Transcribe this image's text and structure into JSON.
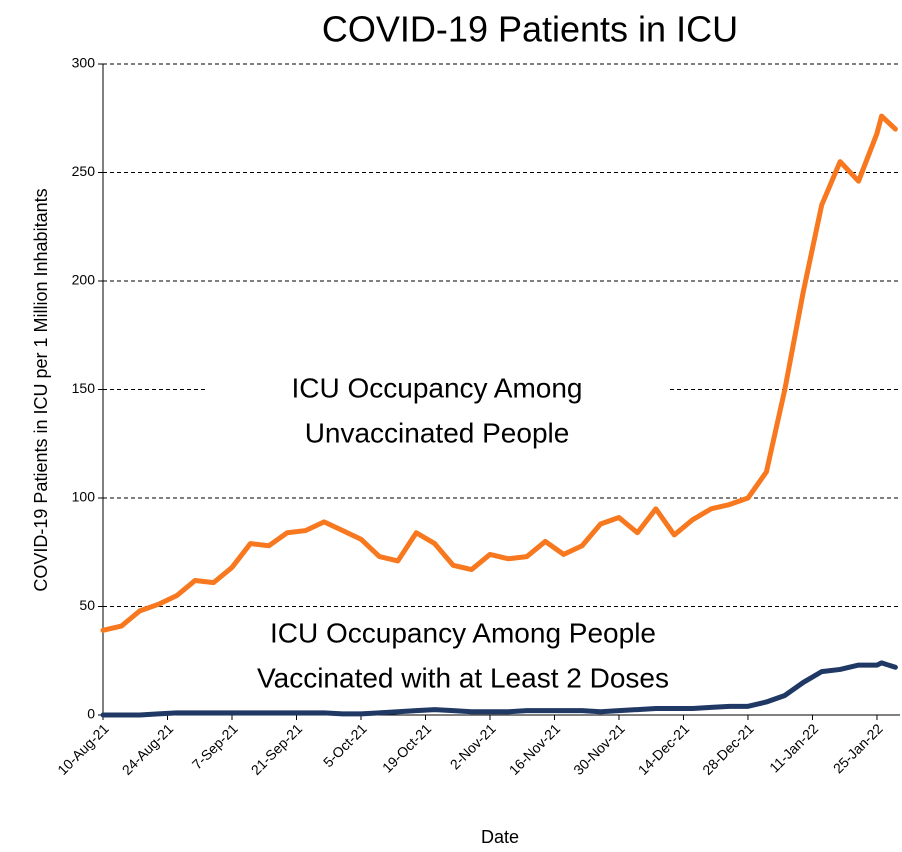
{
  "chart_data": {
    "type": "line",
    "title": "COVID-19 Patients in ICU",
    "x_label": "Date",
    "y_label": "COVID-19 Patients in ICU  per 1 Million Inhabitants",
    "x": [
      "10-Aug-21",
      "14-Aug-21",
      "18-Aug-21",
      "22-Aug-21",
      "26-Aug-21",
      "30-Aug-21",
      "3-Sep-21",
      "7-Sep-21",
      "11-Sep-21",
      "15-Sep-21",
      "19-Sep-21",
      "23-Sep-21",
      "27-Sep-21",
      "1-Oct-21",
      "5-Oct-21",
      "9-Oct-21",
      "13-Oct-21",
      "17-Oct-21",
      "21-Oct-21",
      "25-Oct-21",
      "29-Oct-21",
      "2-Nov-21",
      "6-Nov-21",
      "10-Nov-21",
      "14-Nov-21",
      "18-Nov-21",
      "22-Nov-21",
      "26-Nov-21",
      "30-Nov-21",
      "4-Dec-21",
      "8-Dec-21",
      "12-Dec-21",
      "16-Dec-21",
      "20-Dec-21",
      "24-Dec-21",
      "28-Dec-21",
      "1-Jan-22",
      "5-Jan-22",
      "9-Jan-22",
      "13-Jan-22",
      "17-Jan-22",
      "21-Jan-22",
      "25-Jan-22",
      "26-Jan-22",
      "29-Jan-22"
    ],
    "series": [
      {
        "name": "ICU Occupancy Among Unvaccinated People",
        "color": "#f7781e",
        "values": [
          39,
          41,
          48,
          51,
          55,
          62,
          61,
          68,
          79,
          78,
          84,
          85,
          89,
          85,
          81,
          73,
          71,
          84,
          79,
          69,
          67,
          74,
          72,
          73,
          80,
          74,
          78,
          88,
          91,
          84,
          95,
          83,
          90,
          95,
          97,
          100,
          112,
          150,
          195,
          235,
          255,
          246,
          268,
          276,
          270
        ]
      },
      {
        "name": "ICU Occupancy Among People Vaccinated with at Least 2 Doses",
        "color": "#1f3864",
        "values": [
          0,
          0,
          0,
          0.5,
          1,
          1,
          1,
          1,
          1,
          1,
          1,
          1,
          1,
          0.5,
          0.5,
          1,
          1.5,
          2,
          2.5,
          2,
          1.5,
          1.5,
          1.5,
          2,
          2,
          2,
          2,
          1.5,
          2,
          2.5,
          3,
          3,
          3,
          3.5,
          4,
          4,
          6,
          9,
          15,
          20,
          21,
          23,
          23,
          24,
          22
        ]
      }
    ],
    "annotations": [
      {
        "lines": [
          "ICU Occupancy Among",
          "Unvaccinated People"
        ]
      },
      {
        "lines": [
          "ICU Occupancy Among People",
          "Vaccinated with at Least 2 Doses"
        ]
      }
    ],
    "xlim": [
      "10-Aug-21",
      "30-Jan-22"
    ],
    "xticks": [
      "10-Aug-21",
      "24-Aug-21",
      "7-Sep-21",
      "21-Sep-21",
      "5-Oct-21",
      "19-Oct-21",
      "2-Nov-21",
      "16-Nov-21",
      "30-Nov-21",
      "14-Dec-21",
      "28-Dec-21",
      "11-Jan-22",
      "25-Jan-22"
    ],
    "ylim": [
      0,
      300
    ],
    "yticks": [
      0,
      50,
      100,
      150,
      200,
      250,
      300
    ],
    "grid": true
  }
}
